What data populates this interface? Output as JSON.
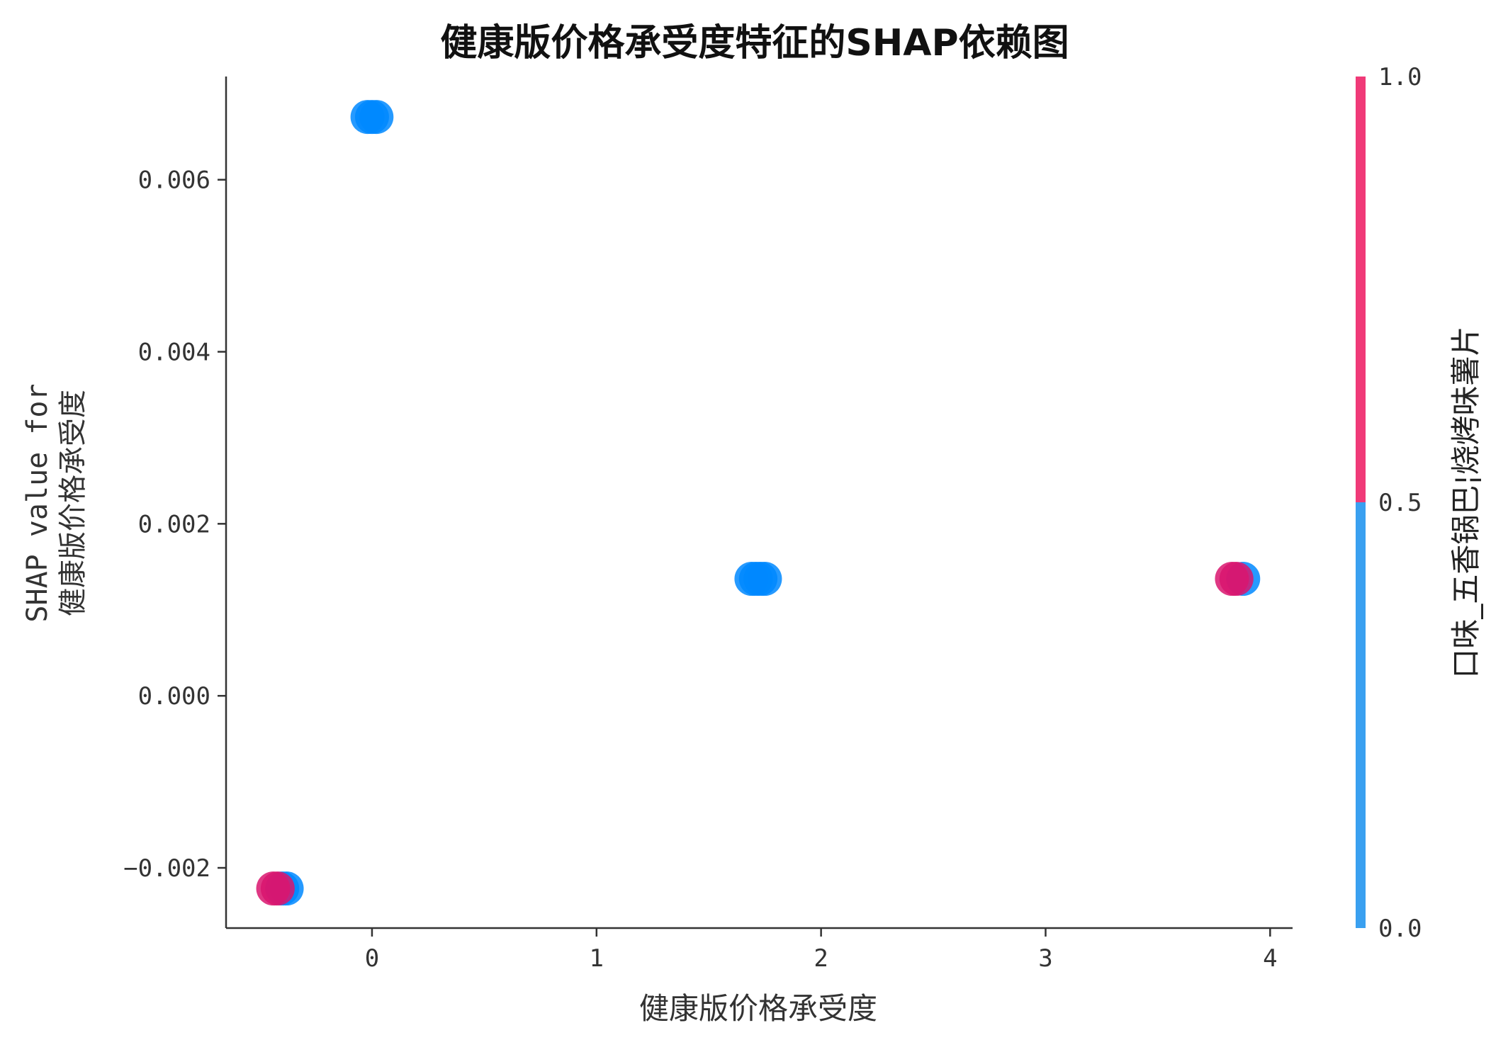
{
  "chart_data": {
    "type": "scatter",
    "title": "健康版价格承受度特征的SHAP依赖图",
    "xlabel": "健康版价格承受度",
    "ylabel_line1": "SHAP value for",
    "ylabel_line2": "健康版价格承受度",
    "xlim": [
      -0.65,
      4.1
    ],
    "ylim": [
      -0.0027,
      0.0072
    ],
    "xticks": [
      0,
      1,
      2,
      3,
      4
    ],
    "xtick_labels": [
      "0",
      "1",
      "2",
      "3",
      "4"
    ],
    "yticks": [
      -0.002,
      0.0,
      0.002,
      0.004,
      0.006
    ],
    "ytick_labels": [
      "−0.002",
      "0.000",
      "0.002",
      "0.004",
      "0.006"
    ],
    "colorbar": {
      "label": "口味_五香锅巴¦烧烤味薯片",
      "ticks": [
        0.0,
        0.5,
        1.0
      ],
      "tick_labels": [
        "0.0",
        "0.5",
        "1.0"
      ],
      "low_color": "#3aa0f0",
      "high_color": "#f03a78"
    },
    "colors": {
      "low_point": "#0088ff",
      "high_point": "#d9156e",
      "axis": "#333333"
    },
    "points": [
      {
        "x": -0.44,
        "y": -0.00224,
        "c": 1
      },
      {
        "x": -0.42,
        "y": -0.00224,
        "c": 1
      },
      {
        "x": -0.4,
        "y": -0.00224,
        "c": 0
      },
      {
        "x": -0.38,
        "y": -0.00224,
        "c": 0
      },
      {
        "x": -0.02,
        "y": 0.00673,
        "c": 0
      },
      {
        "x": 0.0,
        "y": 0.00673,
        "c": 0
      },
      {
        "x": 0.02,
        "y": 0.00673,
        "c": 0
      },
      {
        "x": 1.69,
        "y": 0.00136,
        "c": 0
      },
      {
        "x": 1.71,
        "y": 0.00136,
        "c": 0
      },
      {
        "x": 1.73,
        "y": 0.00136,
        "c": 0
      },
      {
        "x": 1.75,
        "y": 0.00136,
        "c": 0
      },
      {
        "x": 3.88,
        "y": 0.00136,
        "c": 0
      },
      {
        "x": 3.83,
        "y": 0.00136,
        "c": 1
      },
      {
        "x": 3.85,
        "y": 0.00136,
        "c": 1
      }
    ]
  }
}
